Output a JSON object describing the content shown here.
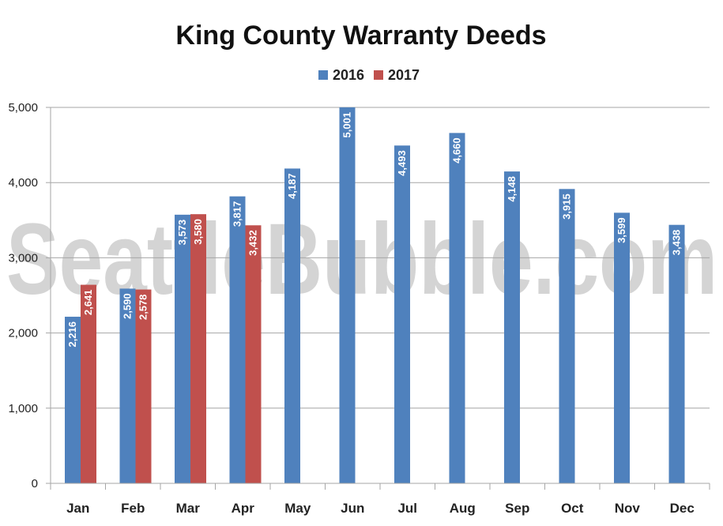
{
  "chart_data": {
    "type": "bar",
    "title": "King County Warranty Deeds",
    "categories": [
      "Jan",
      "Feb",
      "Mar",
      "Apr",
      "May",
      "Jun",
      "Jul",
      "Aug",
      "Sep",
      "Oct",
      "Nov",
      "Dec"
    ],
    "series": [
      {
        "name": "2016",
        "color": "#4f81bd",
        "values": [
          2216,
          2590,
          3573,
          3817,
          4187,
          5001,
          4493,
          4660,
          4148,
          3915,
          3599,
          3438
        ]
      },
      {
        "name": "2017",
        "color": "#c0504d",
        "values": [
          2641,
          2578,
          3580,
          3432,
          null,
          null,
          null,
          null,
          null,
          null,
          null,
          null
        ]
      }
    ],
    "ylim": [
      0,
      5000
    ],
    "yticks": [
      0,
      1000,
      2000,
      3000,
      4000,
      5000
    ],
    "ytick_labels": [
      "0",
      "1,000",
      "2,000",
      "3,000",
      "4,000",
      "5,000"
    ],
    "grid": true,
    "legend_position": "top-center",
    "watermark": "SeattleBubble.com"
  }
}
